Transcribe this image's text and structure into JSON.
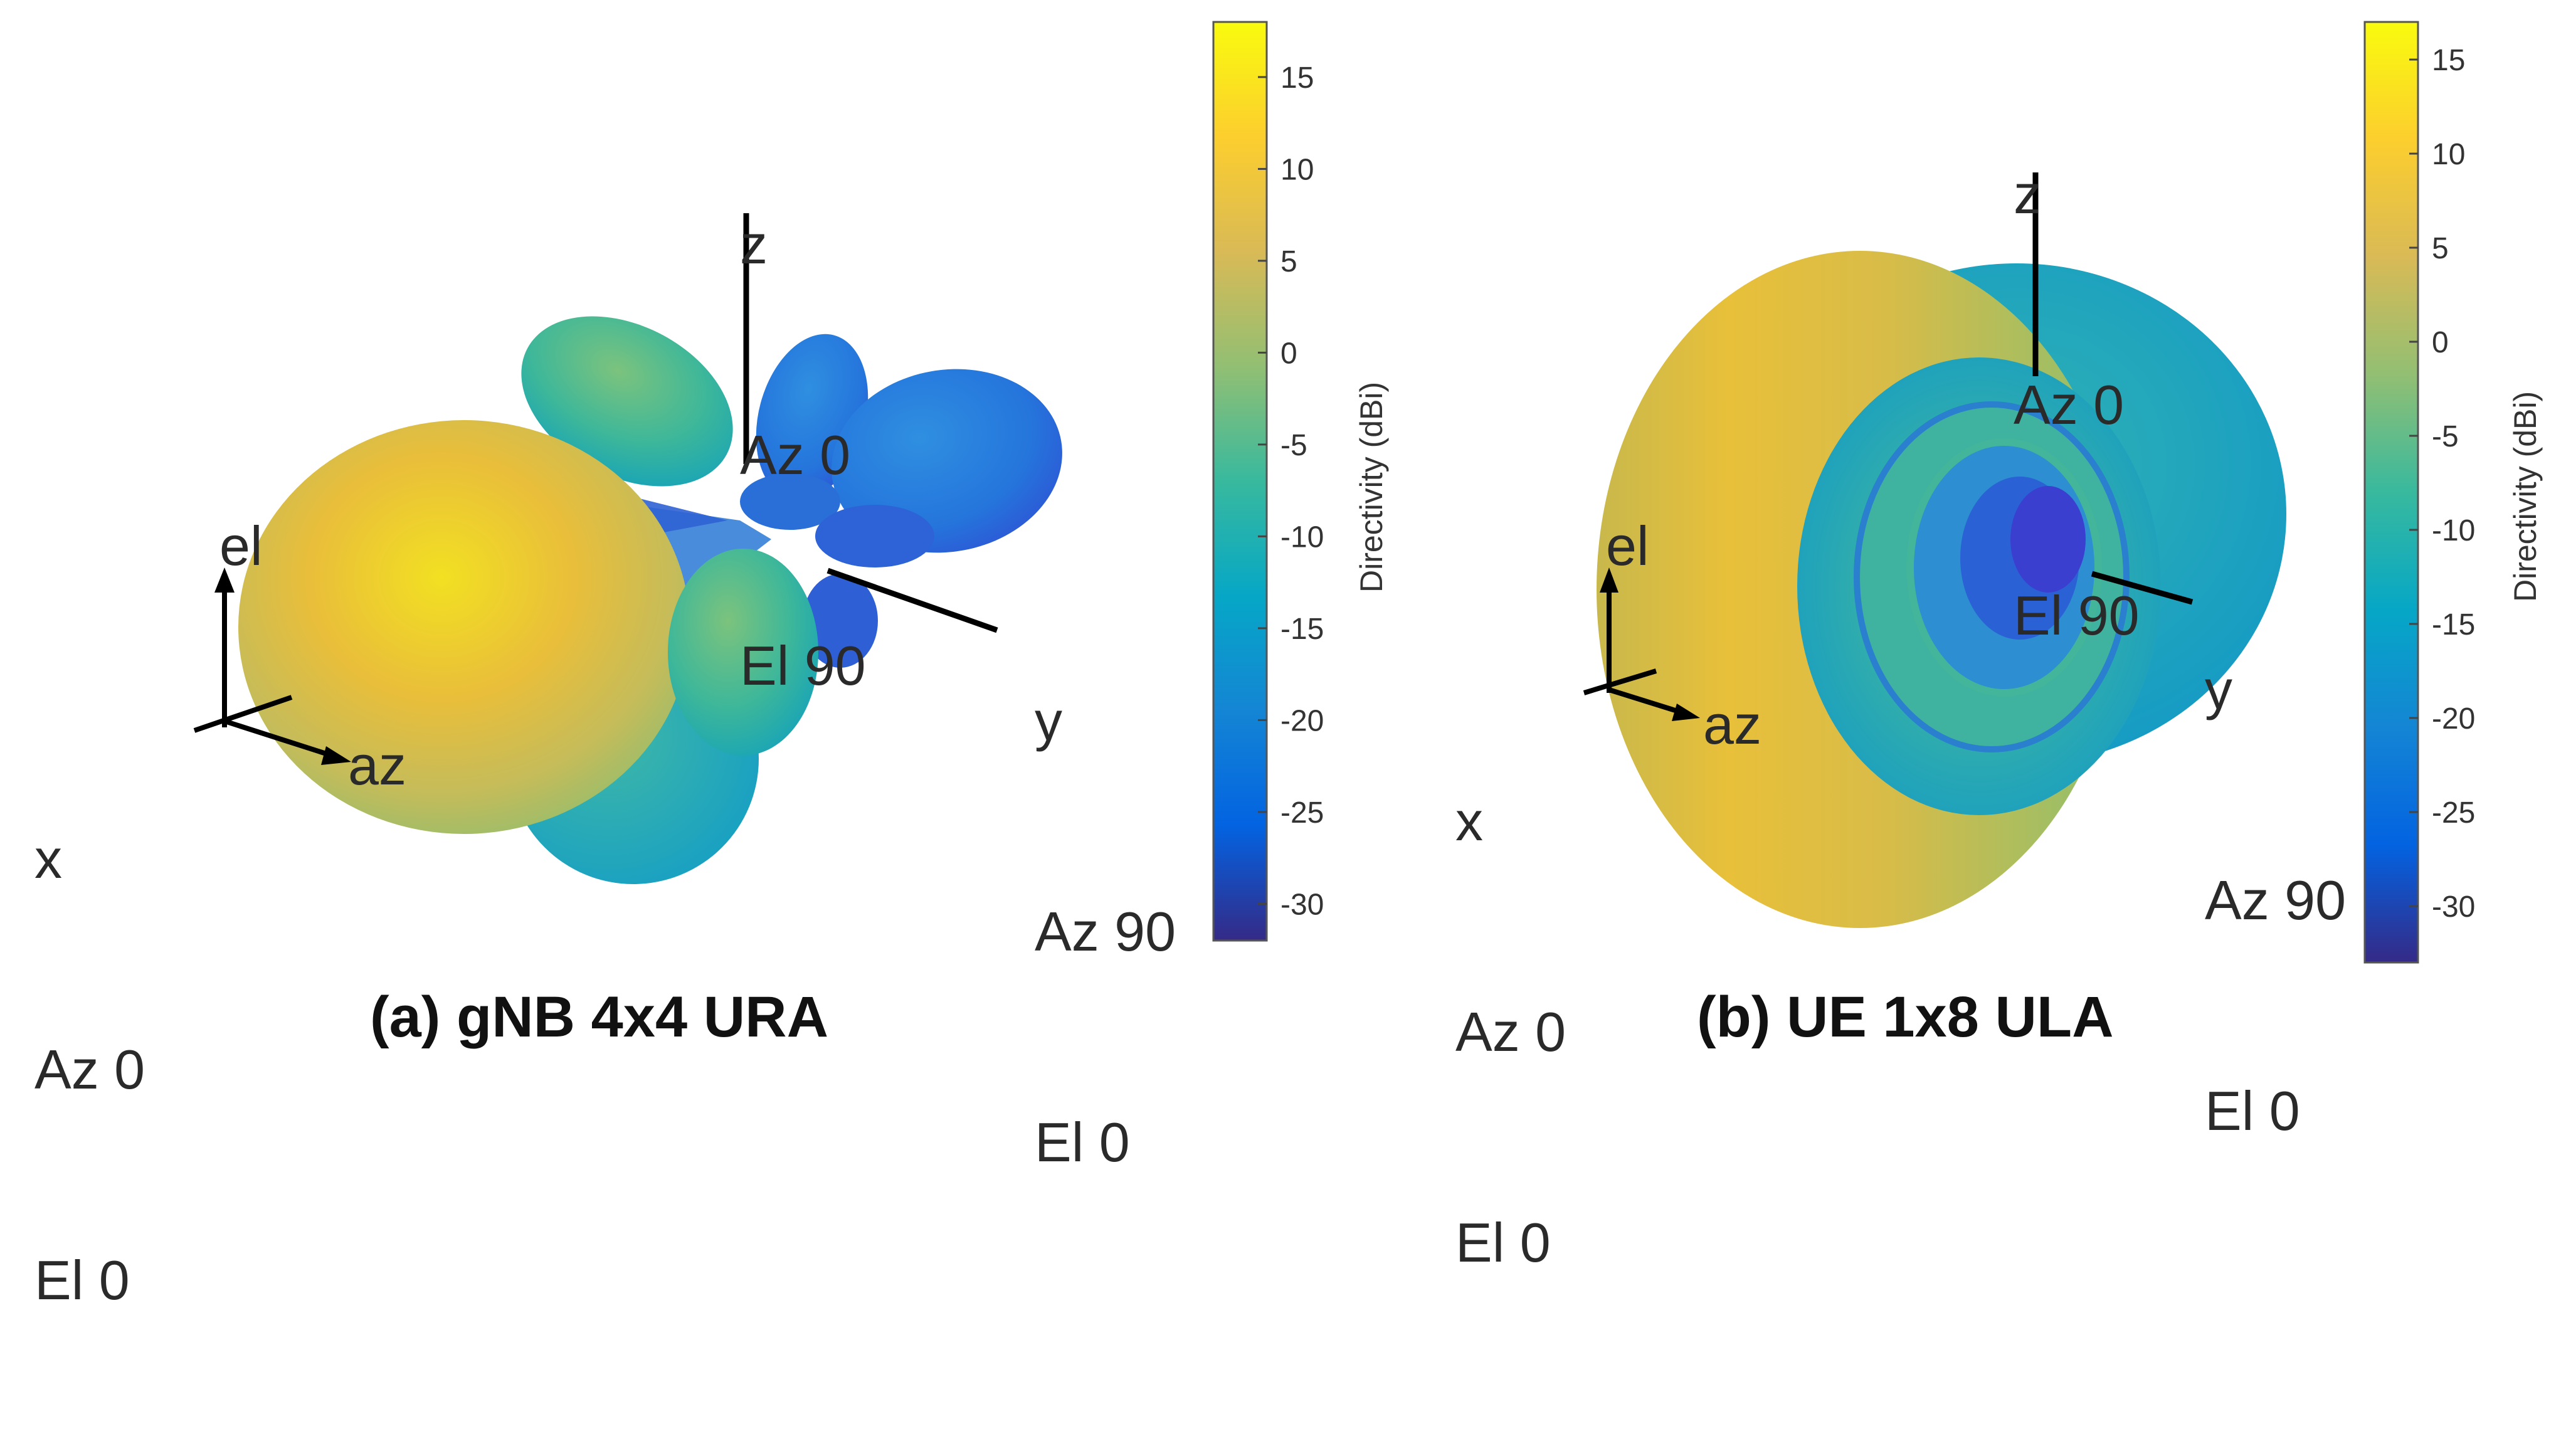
{
  "colormap": [
    "#352a87",
    "#0363e1",
    "#1485d4",
    "#06a7c6",
    "#38b99e",
    "#92bf73",
    "#d9ba56",
    "#fcce2e",
    "#f9fb0e"
  ],
  "chart_data": [
    {
      "type": "3d-radiation-pattern",
      "caption": "(a) gNB 4x4 URA",
      "colorbar": {
        "label": "Directivity (dBi)",
        "ticks": [
          15,
          10,
          5,
          0,
          -5,
          -10,
          -15,
          -20,
          -25,
          -30
        ],
        "range": [
          -32,
          18
        ]
      },
      "axes": {
        "z": [
          "z",
          "Az 0",
          "El 90"
        ],
        "y": [
          "y",
          "Az 90",
          "El 0"
        ],
        "x": [
          "x",
          "Az 0",
          "El 0"
        ],
        "el": "el",
        "az": "az"
      }
    },
    {
      "type": "3d-radiation-pattern",
      "caption": "(b) UE 1x8 ULA",
      "colorbar": {
        "label": "Directivity (dBi)",
        "ticks": [
          15,
          10,
          5,
          0,
          -5,
          -10,
          -15,
          -20,
          -25,
          -30
        ],
        "range": [
          -33,
          17
        ]
      },
      "axes": {
        "z": [
          "z",
          "Az 0",
          "El 90"
        ],
        "y": [
          "y",
          "Az 90",
          "El 0"
        ],
        "x": [
          "x",
          "Az 0",
          "El 0"
        ],
        "el": "el",
        "az": "az"
      }
    }
  ]
}
